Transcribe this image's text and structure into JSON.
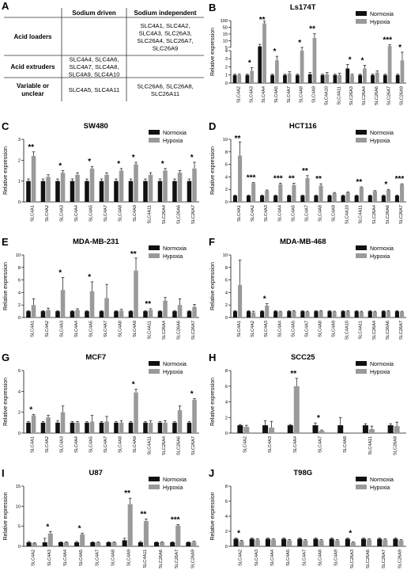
{
  "table": {
    "letter": "A",
    "col_headers": [
      "Sodium driven",
      "Sodium independent"
    ],
    "rows": [
      {
        "label": [
          "Acid loaders"
        ],
        "sodium_driven": [],
        "sodium_independent": [
          "SLC4A1, SLC4A2,",
          "SLC4A3, SLC26A3,",
          "SLC26A4, SLC26A7,",
          "SLC26A9"
        ]
      },
      {
        "label": [
          "Acid extruders"
        ],
        "sodium_driven": [
          "SLC4A4, SLC4A6,",
          "SLC4A7, SLC4A8,",
          "SLC4A9, SLC4A10"
        ],
        "sodium_independent": []
      },
      {
        "label": [
          "Variable or",
          "unclear"
        ],
        "sodium_driven": [
          "SLC4A5, SLC4A11"
        ],
        "sodium_independent": [
          "SLC26A6, SLC26A8,",
          "SLC26A11"
        ]
      }
    ]
  },
  "legend": {
    "normoxia": "Normoxia",
    "hypoxia": "Hypoxia"
  },
  "colors": {
    "normoxia": "#111111",
    "hypoxia": "#9a9a9a"
  },
  "chart_data": [
    {
      "letter": "B",
      "type": "bar",
      "title": "Ls174T",
      "ylabel": "Relative expression",
      "broken_axis": true,
      "ticks_lower": [
        0,
        1,
        2,
        3,
        4
      ],
      "ticks_upper": [
        5,
        10,
        15,
        50,
        100
      ],
      "ylim": [
        0,
        100
      ],
      "categories": [
        "SLC4A2",
        "SLC4A3",
        "SLC4A4",
        "SLC4A5",
        "SLC4A7",
        "SLC4A8",
        "SLC4A9",
        "SLC4A10",
        "SLC4A11",
        "SLC26A3",
        "SLC26A4",
        "SLC26A6",
        "SLC26A7",
        "SLC26A9"
      ],
      "series": [
        {
          "name": "Normoxia",
          "values": [
            1,
            1,
            5.8,
            1,
            1,
            1,
            1.1,
            1,
            1,
            1.8,
            1,
            1,
            1,
            1
          ]
        },
        {
          "name": "Hypoxia",
          "values": [
            1,
            1.5,
            80,
            2.8,
            1.2,
            4,
            12,
            1.1,
            1,
            1,
            1.8,
            1.3,
            6,
            2.8
          ]
        }
      ],
      "errors": [
        [
          0.1,
          0.1,
          1.5,
          0.1,
          0.1,
          0.1,
          0.2,
          0.1,
          0.1,
          0.5,
          0.1,
          0.1,
          0.1,
          0.1
        ],
        [
          0.1,
          0.4,
          15,
          0.5,
          0.2,
          1,
          4,
          0.2,
          0.2,
          0.1,
          0.4,
          0.2,
          1,
          1
        ]
      ],
      "annotations": [
        "",
        "*",
        "**",
        "*",
        "",
        "*",
        "**",
        "",
        "",
        "*",
        "*",
        "",
        "***",
        "*"
      ]
    },
    {
      "letter": "C",
      "type": "bar",
      "title": "SW480",
      "ylabel": "Relative expression",
      "ylim": [
        0,
        3
      ],
      "ticks": [
        0,
        1,
        2,
        3
      ],
      "categories": [
        "SLC4A1",
        "SLC4A2",
        "SLC4A3",
        "SLC4A4",
        "SLC4A5",
        "SLC4A7",
        "SLC4A8",
        "SLC4A9",
        "SLC4A11",
        "SLC26A4",
        "SLC26A6",
        "SLC26A7"
      ],
      "series": [
        {
          "name": "Normoxia",
          "values": [
            1,
            1,
            1,
            1,
            1,
            1,
            1,
            1,
            1,
            1,
            1,
            1
          ]
        },
        {
          "name": "Hypoxia",
          "values": [
            2.2,
            1.2,
            1.4,
            1.3,
            1.6,
            1.3,
            1.5,
            1.8,
            1.3,
            1.5,
            1.4,
            1.6
          ]
        }
      ],
      "errors": [
        [
          0.1,
          0.1,
          0.1,
          0.1,
          0.1,
          0.1,
          0.1,
          0.1,
          0.1,
          0.1,
          0.1,
          0.1
        ],
        [
          0.2,
          0.1,
          0.1,
          0.1,
          0.1,
          0.1,
          0.1,
          0.1,
          0.1,
          0.1,
          0.1,
          0.3
        ]
      ],
      "annotations": [
        "**",
        "",
        "*",
        "",
        "*",
        "",
        "*",
        "*",
        "",
        "*",
        "",
        "*"
      ]
    },
    {
      "letter": "D",
      "type": "bar",
      "title": "HCT116",
      "ylabel": "Relative expression",
      "ylim": [
        0,
        10
      ],
      "ticks": [
        0,
        2,
        4,
        6,
        8,
        10
      ],
      "categories": [
        "SLC4A1",
        "SLC4A2",
        "SLC4A3",
        "SLC4A4",
        "SLC4A5",
        "SLC4A7",
        "SLC4A8",
        "SLC4A9",
        "SLC4A10",
        "SLC4A11",
        "SLC26A4",
        "SLC26A6",
        "SLC26A7"
      ],
      "series": [
        {
          "name": "Normoxia",
          "values": [
            1,
            1,
            1,
            1,
            1,
            1,
            1,
            1,
            1,
            1,
            1,
            1,
            1
          ]
        },
        {
          "name": "Hypoxia",
          "values": [
            7.4,
            3,
            1.8,
            2.8,
            2.7,
            3.8,
            2.6,
            1.4,
            1.5,
            2.3,
            1.7,
            1.9,
            2.8
          ]
        }
      ],
      "errors": [
        [
          0.1,
          0.1,
          0.1,
          0.1,
          0.1,
          0.1,
          0.1,
          0.1,
          0.1,
          0.1,
          0.1,
          0.1,
          0.1
        ],
        [
          2.2,
          0.1,
          0.1,
          0.2,
          0.3,
          0.4,
          0.3,
          0.1,
          0.1,
          0.1,
          0.1,
          0.1,
          0.1
        ]
      ],
      "annotations": [
        "**",
        "***",
        "",
        "***",
        "**",
        "**",
        "**",
        "",
        "",
        "**",
        "",
        "*",
        "***"
      ]
    },
    {
      "letter": "E",
      "type": "bar",
      "title": "MDA-MB-231",
      "ylabel": "Relative expression",
      "ylim": [
        0,
        10
      ],
      "ticks": [
        0,
        2,
        4,
        6,
        8,
        10
      ],
      "categories": [
        "SLC4A1",
        "SLC4A2",
        "SLC4A3",
        "SLC4A4",
        "SLC4A5",
        "SLC4A7",
        "SLC4A8",
        "SLC4A9",
        "SLC4A11",
        "SLC26A4",
        "SLC26A6",
        "SLC26A7"
      ],
      "series": [
        {
          "name": "Normoxia",
          "values": [
            1,
            1,
            1,
            1,
            1,
            1,
            1,
            1,
            1,
            1,
            1,
            1
          ]
        },
        {
          "name": "Hypoxia",
          "values": [
            2,
            1.2,
            4.4,
            1.2,
            4.2,
            3.1,
            1.1,
            7.5,
            1.2,
            2.7,
            2,
            1.7
          ]
        }
      ],
      "errors": [
        [
          0.1,
          0.1,
          0.1,
          0.1,
          0.1,
          0.1,
          0.1,
          0.1,
          0.1,
          0.1,
          0.1,
          0.1
        ],
        [
          1,
          0.3,
          2,
          0.2,
          1.5,
          2.2,
          0.2,
          2,
          0.2,
          0.5,
          1,
          0.4
        ]
      ],
      "annotations": [
        "",
        "",
        "*",
        "",
        "*",
        "",
        "",
        "**",
        "**",
        "",
        "",
        ""
      ]
    },
    {
      "letter": "F",
      "type": "bar",
      "title": "MDA-MB-468",
      "ylabel": "Relative expression",
      "ylim": [
        0,
        10
      ],
      "ticks": [
        0,
        2,
        4,
        6,
        8,
        10
      ],
      "categories": [
        "SLC4A1",
        "SLC4A2",
        "SLC4A3",
        "SLC4A4",
        "SLC4A5",
        "SLC4A7",
        "SLC4A8",
        "SLC4A9",
        "SLC4A10",
        "SLC4A11",
        "SLC26A4",
        "SLC26A6",
        "SLC26A7"
      ],
      "series": [
        {
          "name": "Normoxia",
          "values": [
            1,
            1,
            1,
            1,
            1,
            1,
            1,
            1,
            1,
            1,
            1,
            1,
            1
          ]
        },
        {
          "name": "Hypoxia",
          "values": [
            5.2,
            0.8,
            1.9,
            0.9,
            1,
            0.9,
            1,
            0.9,
            1,
            0.9,
            0.9,
            1,
            0.9
          ]
        }
      ],
      "errors": [
        [
          0.1,
          0.1,
          0.1,
          0.1,
          0.1,
          0.1,
          0.1,
          0.1,
          0.1,
          0.1,
          0.1,
          0.1,
          0.1
        ],
        [
          4,
          0.2,
          0.3,
          0.1,
          0.1,
          0.1,
          0.1,
          0.1,
          0.1,
          0.1,
          0.1,
          0.1,
          0.1
        ]
      ],
      "annotations": [
        "",
        "",
        "*",
        "",
        "",
        "",
        "",
        "",
        "",
        "",
        "",
        "",
        ""
      ]
    },
    {
      "letter": "G",
      "type": "bar",
      "title": "MCF7",
      "ylabel": "Relative expression",
      "ylim": [
        0,
        6
      ],
      "ticks": [
        0,
        2,
        4,
        6
      ],
      "categories": [
        "SLC4A1",
        "SLC4A2",
        "SLC4A3",
        "SLC4A4",
        "SLC4A5",
        "SLC4A7",
        "SLC4A8",
        "SLC4A9",
        "SLC4A11",
        "SLC26A4",
        "SLC26A6",
        "SLC26A7"
      ],
      "series": [
        {
          "name": "Normoxia",
          "values": [
            1,
            1,
            1,
            1,
            1,
            1,
            1,
            1,
            1,
            1,
            1,
            1
          ]
        },
        {
          "name": "Hypoxia",
          "values": [
            1.7,
            1.5,
            2,
            1,
            1.1,
            1.1,
            1,
            3.9,
            1,
            1,
            2.2,
            3.2
          ]
        }
      ],
      "errors": [
        [
          0.1,
          0.1,
          0.2,
          0.1,
          0.1,
          0.1,
          0.1,
          0.1,
          0.1,
          0.1,
          0.1,
          0.1
        ],
        [
          0.1,
          0.2,
          0.6,
          0.1,
          0.6,
          0.5,
          0.2,
          0.3,
          0.2,
          0.2,
          0.4,
          0.1
        ]
      ],
      "annotations": [
        "*",
        "",
        "",
        "",
        "",
        "",
        "",
        "*",
        "",
        "",
        "",
        "*"
      ]
    },
    {
      "letter": "H",
      "type": "bar",
      "title": "SCC25",
      "ylabel": "Relative expression",
      "ylim": [
        0,
        8
      ],
      "ticks": [
        0,
        2,
        4,
        6,
        8
      ],
      "categories": [
        "SLC4A2",
        "SLC4A3",
        "SLC4A4",
        "SLC4A7",
        "SLC4A8",
        "SLC4A11",
        "SLC26A8"
      ],
      "series": [
        {
          "name": "Normoxia",
          "values": [
            1,
            1,
            1,
            1,
            1,
            1,
            1
          ]
        },
        {
          "name": "Hypoxia",
          "values": [
            0.8,
            0.7,
            6,
            0.3,
            0,
            0.5,
            0.9
          ]
        }
      ],
      "errors": [
        [
          0.1,
          0.6,
          0.1,
          0.3,
          1,
          0.2,
          0.2
        ],
        [
          0.2,
          0.8,
          1,
          0.1,
          0,
          0.4,
          0.5
        ]
      ],
      "annotations": [
        "",
        "",
        "**",
        "*",
        "",
        "",
        ""
      ]
    },
    {
      "letter": "I",
      "type": "bar",
      "title": "U87",
      "ylabel": "Relative expression",
      "ylim": [
        0,
        15
      ],
      "ticks": [
        0,
        5,
        10,
        15
      ],
      "categories": [
        "SLC4A2",
        "SLC4A3",
        "SLC4A4",
        "SLC4A5",
        "SLC4A7",
        "SLC4A8",
        "SLC4A9",
        "SLC4A11",
        "SLC26A6",
        "SLC26A7",
        "SLC26A9"
      ],
      "series": [
        {
          "name": "Normoxia",
          "values": [
            1,
            1,
            1,
            1,
            1,
            1,
            1.5,
            1,
            1,
            1,
            1
          ]
        },
        {
          "name": "Hypoxia",
          "values": [
            0.8,
            3.2,
            1,
            3,
            1,
            1,
            10.5,
            6.3,
            1,
            5.2,
            1.1
          ]
        }
      ],
      "errors": [
        [
          0.2,
          1,
          0.1,
          0.2,
          0.1,
          0.1,
          0.5,
          0.2,
          0.1,
          0.1,
          0.1
        ],
        [
          0.1,
          0.5,
          0.1,
          0.3,
          0.1,
          0.1,
          1.5,
          0.5,
          0.1,
          0.2,
          0.2
        ]
      ],
      "annotations": [
        "",
        "*",
        "",
        "*",
        "",
        "",
        "**",
        "**",
        "",
        "***",
        ""
      ]
    },
    {
      "letter": "J",
      "type": "bar",
      "title": "T98G",
      "ylabel": "Relative expression",
      "ylim": [
        0,
        8
      ],
      "ticks": [
        0,
        2,
        4,
        6,
        8
      ],
      "categories": [
        "SLC4A2",
        "SLC4A3",
        "SLC4A4",
        "SLC4A5",
        "SLC4A7",
        "SLC4A8",
        "SLC4A9",
        "SLC26A3",
        "SLC26A6",
        "SLC26A7",
        "SLC26A9"
      ],
      "series": [
        {
          "name": "Normoxia",
          "values": [
            1,
            1,
            1,
            1,
            1,
            1,
            1,
            1,
            1,
            1,
            1
          ]
        },
        {
          "name": "Hypoxia",
          "values": [
            0.7,
            0.9,
            0.9,
            0.8,
            0.8,
            0.8,
            0.8,
            0.5,
            0.9,
            0.9,
            0.8
          ]
        }
      ],
      "errors": [
        [
          0.1,
          0.1,
          0.1,
          0.1,
          0.1,
          0.1,
          0.1,
          0.1,
          0.1,
          0.1,
          0.1
        ],
        [
          0.1,
          0.1,
          0.1,
          0.1,
          0.1,
          0.1,
          0.1,
          0.1,
          0.1,
          0.1,
          0.1
        ]
      ],
      "annotations": [
        "*",
        "",
        "",
        "",
        "",
        "",
        "",
        "*",
        "",
        "",
        ""
      ]
    }
  ]
}
